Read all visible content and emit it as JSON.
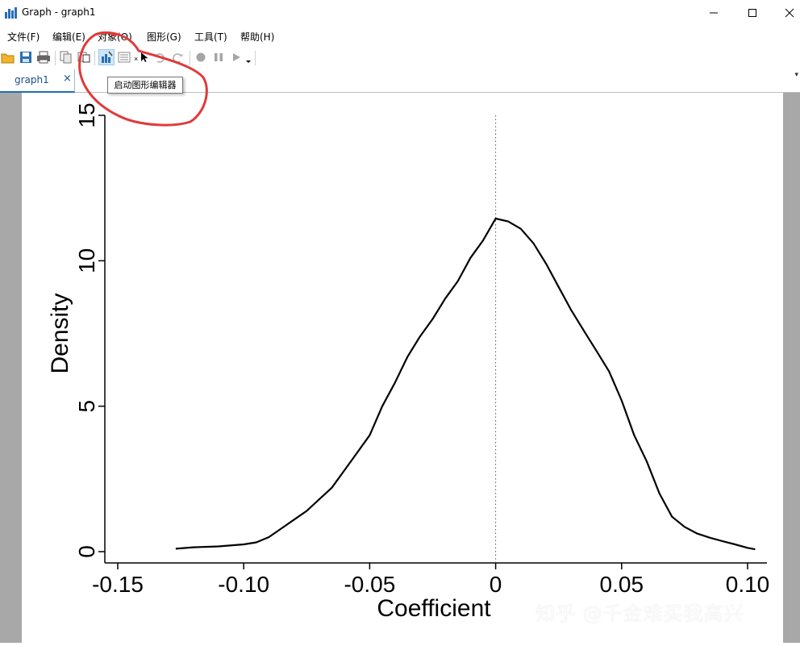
{
  "window": {
    "title": "Graph - graph1"
  },
  "menu": [
    "文件(F)",
    "编辑(E)",
    "对象(O)",
    "图形(G)",
    "工具(T)",
    "帮助(H)"
  ],
  "toolbar": {
    "icons": [
      "open-icon",
      "save-icon",
      "print-icon",
      "copy-icon",
      "copy-table-icon",
      "graph-editor-icon",
      "properties-icon",
      "pointer-icon",
      "undo-icon",
      "redo-icon",
      "record-icon",
      "pause-icon",
      "play-icon"
    ],
    "tooltip": "启动图形编辑器"
  },
  "tab": {
    "label": "graph1",
    "close": "×"
  },
  "chart_data": {
    "type": "line",
    "title": "",
    "xlabel": "Coefficient",
    "ylabel": "Density",
    "xlim": [
      -0.15,
      0.1
    ],
    "ylim": [
      0,
      15
    ],
    "x_ticks": [
      -0.15,
      -0.1,
      -0.05,
      0,
      0.05,
      0.1
    ],
    "x_tick_labels": [
      "-0.15",
      "-0.10",
      "-0.05",
      "0",
      "0.05",
      "0.10"
    ],
    "y_ticks": [
      0,
      5,
      10,
      15
    ],
    "y_tick_labels": [
      "0",
      "5",
      "10",
      "15"
    ],
    "reference_line": {
      "x": 0,
      "style": "dotted"
    },
    "series": [
      {
        "x": [
          -0.127,
          -0.12,
          -0.11,
          -0.1,
          -0.095,
          -0.09,
          -0.085,
          -0.08,
          -0.075,
          -0.07,
          -0.065,
          -0.06,
          -0.055,
          -0.05,
          -0.045,
          -0.04,
          -0.035,
          -0.03,
          -0.025,
          -0.02,
          -0.015,
          -0.01,
          -0.005,
          0,
          0.005,
          0.01,
          0.015,
          0.02,
          0.025,
          0.03,
          0.035,
          0.04,
          0.045,
          0.05,
          0.055,
          0.06,
          0.065,
          0.07,
          0.075,
          0.08,
          0.085,
          0.09,
          0.095,
          0.1,
          0.103
        ],
        "y": [
          0.1,
          0.15,
          0.18,
          0.25,
          0.32,
          0.5,
          0.8,
          1.1,
          1.4,
          1.8,
          2.2,
          2.8,
          3.4,
          4.0,
          5.0,
          5.8,
          6.7,
          7.4,
          8.0,
          8.7,
          9.3,
          10.1,
          10.7,
          11.45,
          11.35,
          11.1,
          10.6,
          9.9,
          9.1,
          8.3,
          7.6,
          6.9,
          6.2,
          5.2,
          4.0,
          3.1,
          2.0,
          1.2,
          0.85,
          0.62,
          0.48,
          0.36,
          0.25,
          0.13,
          0.08
        ]
      }
    ]
  },
  "watermark": "知乎 @千金难买我高兴"
}
